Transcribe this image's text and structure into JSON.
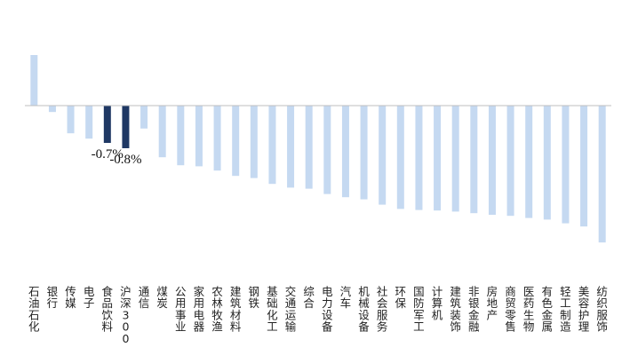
{
  "chart_data": {
    "type": "bar",
    "title": "",
    "xlabel": "",
    "ylabel": "",
    "ylim": [
      -2.6,
      1.0
    ],
    "grid": false,
    "legend": "none",
    "categories": [
      "石油石化",
      "银行",
      "传媒",
      "电子",
      "食品饮料",
      "沪深300",
      "通信",
      "煤炭",
      "公用事业",
      "家用电器",
      "农林牧渔",
      "建筑材料",
      "钢铁",
      "基础化工",
      "交通运输",
      "综合",
      "电力设备",
      "汽车",
      "机械设备",
      "社会服务",
      "环保",
      "国防军工",
      "计算机",
      "建筑装饰",
      "非银金融",
      "房地产",
      "商贸零售",
      "医药生物",
      "有色金属",
      "轻工制造",
      "美容护理",
      "纺织服饰"
    ],
    "values": [
      0.95,
      -0.12,
      -0.52,
      -0.62,
      -0.7,
      -0.8,
      -0.43,
      -0.97,
      -1.12,
      -1.14,
      -1.22,
      -1.32,
      -1.36,
      -1.47,
      -1.54,
      -1.56,
      -1.66,
      -1.72,
      -1.76,
      -1.86,
      -1.94,
      -1.96,
      -1.97,
      -1.99,
      -2.02,
      -2.05,
      -2.07,
      -2.11,
      -2.14,
      -2.21,
      -2.27,
      -2.57
    ],
    "highlight_indices": [
      4,
      5
    ],
    "data_labels": [
      {
        "index": 4,
        "text": "-0.7%"
      },
      {
        "index": 5,
        "text": "-0.8%"
      }
    ],
    "colors": {
      "bar": "#c5d9f1",
      "highlight": "#1f3864",
      "axis": "#bfbfbf"
    }
  }
}
